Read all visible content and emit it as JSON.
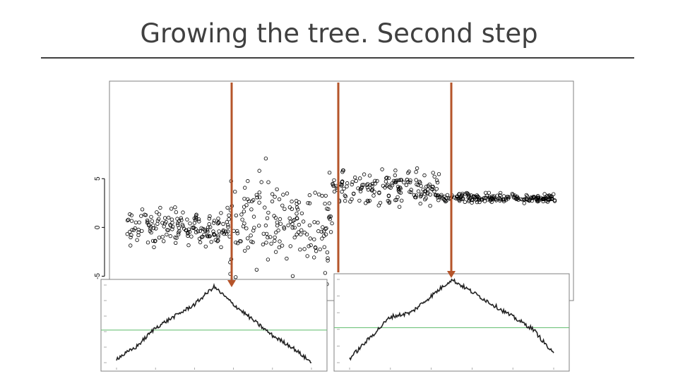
{
  "slide": {
    "title": "Growing the tree. Second step"
  },
  "colors": {
    "axis": "#000000",
    "points": "#000000",
    "split_lines": "#b5542a",
    "baseline": "#6fc27a",
    "frame": "#808080"
  },
  "chart_data": [
    {
      "type": "scatter",
      "title": "",
      "xlabel": "",
      "ylabel": "",
      "ylim": [
        -7.5,
        15
      ],
      "yticks": [
        -5,
        0,
        5
      ],
      "grid": false,
      "x_range": [
        0,
        1
      ],
      "segments": [
        {
          "x": [
            0.0,
            0.24
          ],
          "mean": 0.0,
          "spread": 1.6
        },
        {
          "x": [
            0.24,
            0.48
          ],
          "mean": 0.5,
          "spread": 4.5
        },
        {
          "x": [
            0.48,
            0.73
          ],
          "mean": 4.0,
          "spread": 1.6
        },
        {
          "x": [
            0.73,
            1.0
          ],
          "mean": 3.0,
          "spread": 0.4
        }
      ],
      "split_points": [
        0.24,
        0.48,
        0.73
      ]
    },
    {
      "type": "line",
      "title": "",
      "ylim": [
        0,
        1
      ],
      "x": [
        0,
        0.1,
        0.2,
        0.3,
        0.4,
        0.5,
        0.6,
        0.7,
        0.8,
        0.9,
        1.0
      ],
      "values": [
        0.05,
        0.2,
        0.45,
        0.6,
        0.75,
        0.98,
        0.75,
        0.55,
        0.35,
        0.2,
        0.0
      ],
      "reference_line": 0.42,
      "peak": 0.5
    },
    {
      "type": "line",
      "title": "",
      "ylim": [
        0,
        1
      ],
      "x": [
        0,
        0.1,
        0.2,
        0.3,
        0.4,
        0.5,
        0.6,
        0.7,
        0.8,
        0.9,
        1.0
      ],
      "values": [
        0.05,
        0.3,
        0.55,
        0.6,
        0.8,
        1.0,
        0.85,
        0.7,
        0.55,
        0.4,
        0.1
      ],
      "reference_line": 0.42,
      "peak": 0.55
    }
  ]
}
